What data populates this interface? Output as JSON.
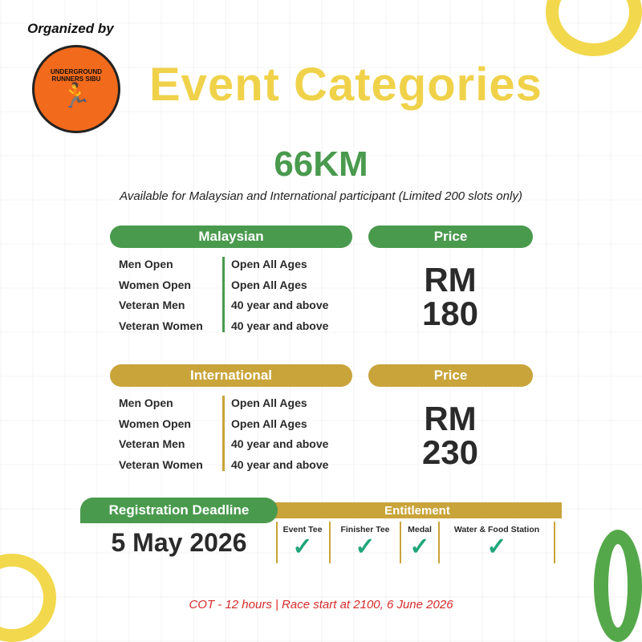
{
  "header": {
    "organized_by": "Organized by",
    "logo_text": "UNDERGROUND RUNNERS SIBU",
    "title": "Event Categories"
  },
  "event": {
    "distance": "66KM",
    "availability": "Available for Malaysian and International participant (Limited 200 slots only)"
  },
  "malaysian": {
    "label": "Malaysian",
    "price_label": "Price",
    "price_currency": "RM",
    "price_amount": "180",
    "categories": [
      {
        "name": "Men Open",
        "age": "Open All Ages"
      },
      {
        "name": "Women Open",
        "age": "Open All Ages"
      },
      {
        "name": "Veteran Men",
        "age": "40 year and above"
      },
      {
        "name": "Veteran Women",
        "age": "40 year and above"
      }
    ]
  },
  "international": {
    "label": "International",
    "price_label": "Price",
    "price_currency": "RM",
    "price_amount": "230",
    "categories": [
      {
        "name": "Men Open",
        "age": "Open All Ages"
      },
      {
        "name": "Women Open",
        "age": "Open All Ages"
      },
      {
        "name": "Veteran Men",
        "age": "40 year and above"
      },
      {
        "name": "Veteran Women",
        "age": "40 year and above"
      }
    ]
  },
  "registration": {
    "label": "Registration Deadline",
    "date": "5 May 2026"
  },
  "entitlement": {
    "label": "Entitlement",
    "items": [
      {
        "name": "Event Tee",
        "icon": "check-icon"
      },
      {
        "name": "Finisher Tee",
        "icon": "check-icon"
      },
      {
        "name": "Medal",
        "icon": "check-icon"
      },
      {
        "name": "Water & Food Station",
        "icon": "check-icon"
      }
    ]
  },
  "footer": {
    "note": "COT - 12 hours | Race start at 2100, 6 June 2026"
  },
  "colors": {
    "green": "#4a9a4e",
    "gold": "#c9a43a",
    "title_yellow": "#f0d24a",
    "check": "#1fa67a",
    "note_red": "#d62b2b",
    "logo_orange": "#f26a1b"
  }
}
